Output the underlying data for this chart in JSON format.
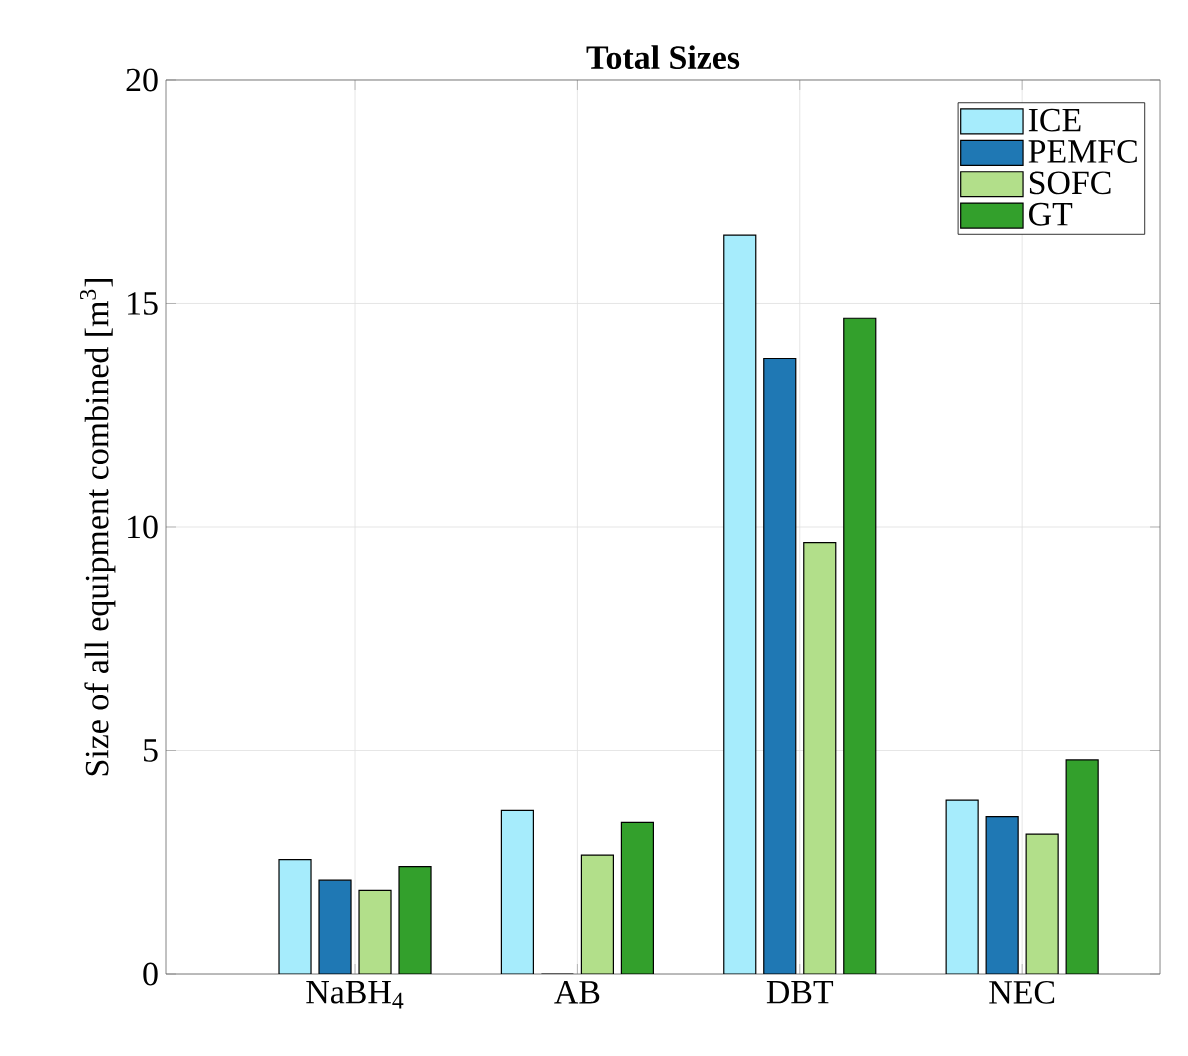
{
  "chart_data": {
    "type": "bar",
    "title": "Total Sizes",
    "ylabel": "Size of all equipment combined [m$^{3}$]",
    "categories": [
      "NaBH$_{4}$",
      "AB",
      "DBT",
      "NEC"
    ],
    "series": [
      {
        "name": "ICE",
        "color": "#a6ecfc",
        "values": [
          2.56,
          3.66,
          16.53,
          3.89
        ]
      },
      {
        "name": "PEMFC",
        "color": "#1f78b4",
        "values": [
          2.1,
          0,
          13.77,
          3.52
        ]
      },
      {
        "name": "SOFC",
        "color": "#b2df8a",
        "values": [
          1.87,
          2.66,
          9.65,
          3.13
        ]
      },
      {
        "name": "GT",
        "color": "#33a02c",
        "values": [
          2.4,
          3.39,
          14.67,
          4.79
        ]
      }
    ],
    "ylim": [
      0,
      20
    ],
    "yticks": [
      0,
      5,
      10,
      15,
      20
    ],
    "grid": true,
    "legend": "top right"
  }
}
